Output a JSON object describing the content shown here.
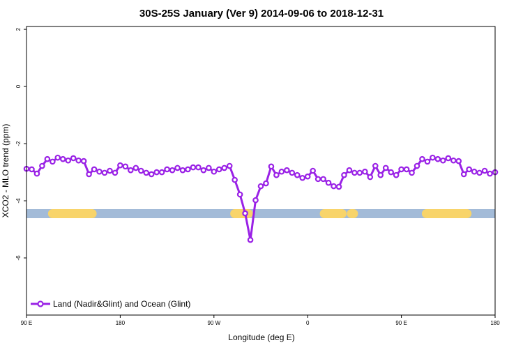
{
  "chart_data": {
    "type": "line",
    "title": "30S-25S January (Ver 9)   2014-09-06 to 2018-12-31",
    "x_label": "Longitude (deg E)",
    "y_label": "XCO2 - MLO trend (ppm)",
    "xlim": [
      90,
      540
    ],
    "xticks": [
      {
        "value": 90,
        "label": "90 E"
      },
      {
        "value": 180,
        "label": "180"
      },
      {
        "value": 270,
        "label": "90 W"
      },
      {
        "value": 360,
        "label": "0"
      },
      {
        "value": 450,
        "label": "90 E"
      },
      {
        "value": 540,
        "label": "180"
      }
    ],
    "ylim": [
      -8,
      2.1
    ],
    "yticks": [
      2,
      0,
      -2,
      -4,
      -6
    ],
    "legend": "bottom-left",
    "x": [
      90,
      95,
      100,
      105,
      110,
      115,
      120,
      125,
      130,
      135,
      140,
      145,
      150,
      155,
      160,
      165,
      170,
      175,
      180,
      185,
      190,
      195,
      200,
      205,
      210,
      215,
      220,
      225,
      230,
      235,
      240,
      245,
      250,
      255,
      260,
      265,
      270,
      275,
      280,
      285,
      290,
      295,
      300,
      305,
      310,
      315,
      320,
      325,
      330,
      335,
      340,
      345,
      350,
      355,
      360,
      365,
      370,
      375,
      380,
      385,
      390,
      395,
      400,
      405,
      410,
      415,
      420,
      425,
      430,
      435,
      440,
      445,
      450,
      455,
      460,
      465,
      470,
      475,
      480,
      485,
      490,
      495,
      500,
      505,
      510,
      515,
      520,
      525,
      530,
      535,
      540
    ],
    "series": [
      {
        "name": "Land (Nadir&Glint) and Ocean (Glint)",
        "color": "#9a22e6",
        "values": [
          -2.88,
          -2.9,
          -3.05,
          -2.78,
          -2.54,
          -2.63,
          -2.49,
          -2.54,
          -2.59,
          -2.51,
          -2.59,
          -2.61,
          -3.07,
          -2.9,
          -2.98,
          -3.02,
          -2.95,
          -3.02,
          -2.76,
          -2.8,
          -2.93,
          -2.85,
          -2.95,
          -3.02,
          -3.07,
          -3.0,
          -3.0,
          -2.9,
          -2.93,
          -2.85,
          -2.93,
          -2.9,
          -2.83,
          -2.83,
          -2.93,
          -2.85,
          -2.98,
          -2.9,
          -2.85,
          -2.78,
          -3.27,
          -3.78,
          -4.44,
          -5.37,
          -3.98,
          -3.49,
          -3.39,
          -2.8,
          -3.1,
          -2.98,
          -2.93,
          -3.02,
          -3.1,
          -3.2,
          -3.15,
          -2.95,
          -3.24,
          -3.24,
          -3.37,
          -3.49,
          -3.51,
          -3.1,
          -2.93,
          -3.02,
          -3.02,
          -2.98,
          -3.17,
          -2.78,
          -3.1,
          -2.85,
          -3.0,
          -3.1,
          -2.9,
          -2.9,
          -3.02,
          -2.78,
          -2.54,
          -2.63,
          -2.49,
          -2.54,
          -2.59,
          -2.51,
          -2.59,
          -2.61,
          -3.07,
          -2.9,
          -2.98,
          -3.02,
          -2.95,
          -3.05,
          -3.0
        ]
      }
    ],
    "surface_band": {
      "y": -4.45,
      "ocean_color": "#a3bbd8",
      "land_color": "#f8d46a",
      "land_ranges": [
        [
          115,
          153
        ],
        [
          290,
          303
        ],
        [
          376,
          393
        ],
        [
          402,
          404
        ],
        [
          474,
          513
        ]
      ]
    }
  }
}
